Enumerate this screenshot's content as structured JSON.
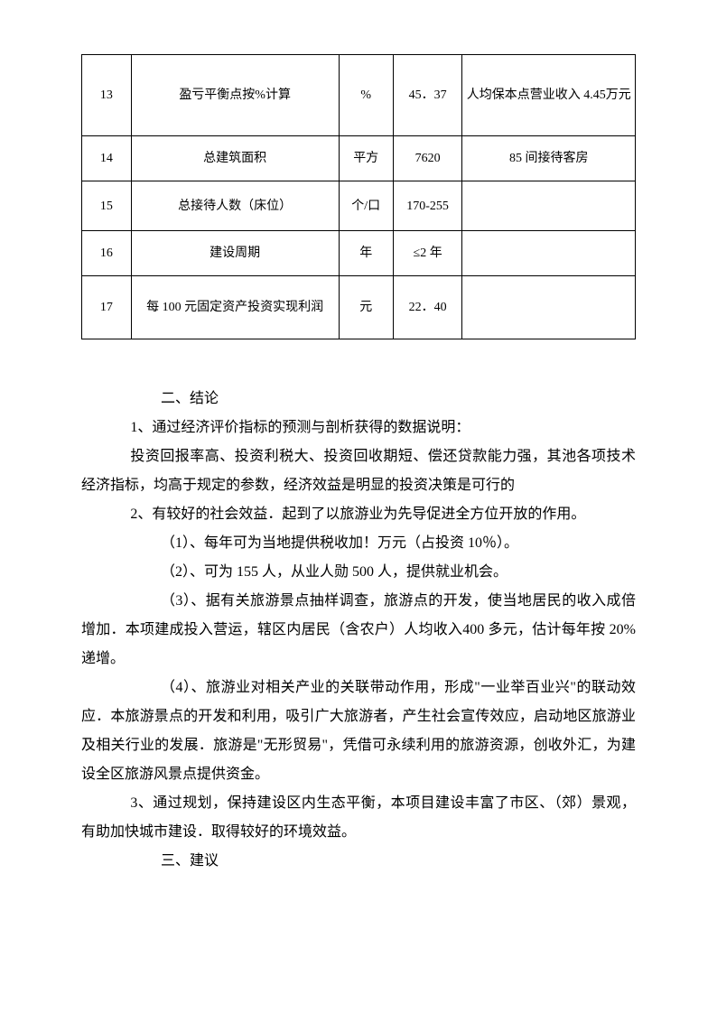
{
  "table": {
    "rows": [
      {
        "num": "13",
        "name": "盈亏平衡点按%计算",
        "unit": "%",
        "val": "45．37",
        "note": "人均保本点营业收入 4.45万元",
        "rowClass": "row-tall"
      },
      {
        "num": "14",
        "name": "总建筑面积",
        "unit": "平方",
        "val": "7620",
        "note": "85 间接待客房",
        "rowClass": "row-mid"
      },
      {
        "num": "15",
        "name": "总接待人数（床位）",
        "unit": "个/口",
        "val": "170-255",
        "note": "",
        "rowClass": "row-mid2"
      },
      {
        "num": "16",
        "name": "建设周期",
        "unit": "年",
        "val": "≤2 年",
        "note": "",
        "rowClass": "row-mid"
      },
      {
        "num": "17",
        "name": "每 100 元固定资产投资实现利润",
        "unit": "元",
        "val": "22．40",
        "note": "",
        "rowClass": "row-big"
      }
    ]
  },
  "text": {
    "section2_title": "二、结论",
    "p1": "1、通过经济评价指标的预测与剖析获得的数据说明：",
    "p2": "投资回报率高、投资利税大、投资回收期短、偿还贷款能力强，其池各项技术经济指标，均高于规定的参数，经济效益是明显的投资决策是可行的",
    "p3": "2、有较好的社会效益．起到了以旅游业为先导促进全方位开放的作用。",
    "p4": "（1）、每年可为当地提供税收加！万元（占投资 10％）。",
    "p5": "（2）、可为 155 人，从业人勋 500 人，提供就业机会。",
    "p6": "（3）、据有关旅游景点抽样调查，旅游点的开发，使当地居民的收入成倍增加．本项建成投入营运，辖区内居民（含农户）人均收入400 多元，估计每年按 20%递增。",
    "p7": "（4）、旅游业对相关产业的关联带动作用，形成\"一业举百业兴\"的联动效应．本旅游景点的开发和利用，吸引广大旅游者，产生社会宣传效应，启动地区旅游业及相关行业的发展．旅游是\"无形贸易\"，凭借可永续利用的旅游资源，创收外汇，为建设全区旅游风景点提供资金。",
    "p8": "3、通过规划，保持建设区内生态平衡，本项目建设丰富了市区、（郊）景观，有助加快城市建设．取得较好的环境效益。",
    "section3_title": "三、建议"
  }
}
